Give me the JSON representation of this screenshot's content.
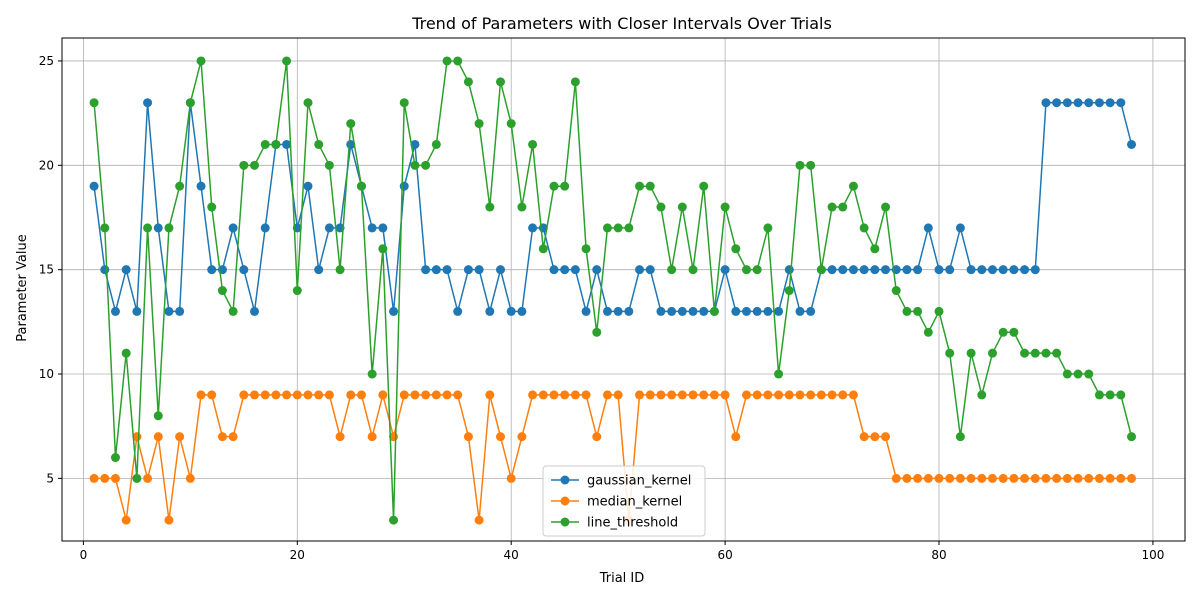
{
  "chart_data": {
    "type": "line",
    "title": "Trend of Parameters with Closer Intervals Over Trials",
    "xlabel": "Trial ID",
    "ylabel": "Parameter Value",
    "xlim": [
      -2,
      103
    ],
    "ylim": [
      2,
      26.1
    ],
    "xticks": [
      0,
      20,
      40,
      60,
      80,
      100
    ],
    "yticks": [
      5,
      10,
      15,
      20,
      25
    ],
    "grid": true,
    "legend_position": "lower-center",
    "x": [
      1,
      2,
      3,
      4,
      5,
      6,
      7,
      8,
      9,
      10,
      11,
      12,
      13,
      14,
      15,
      16,
      17,
      18,
      19,
      20,
      21,
      22,
      23,
      24,
      25,
      26,
      27,
      28,
      29,
      30,
      31,
      32,
      33,
      34,
      35,
      36,
      37,
      38,
      39,
      40,
      41,
      42,
      43,
      44,
      45,
      46,
      47,
      48,
      49,
      50,
      51,
      52,
      53,
      54,
      55,
      56,
      57,
      58,
      59,
      60,
      61,
      62,
      63,
      64,
      65,
      66,
      67,
      68,
      69,
      70,
      71,
      72,
      73,
      74,
      75,
      76,
      77,
      78,
      79,
      80,
      81,
      82,
      83,
      84,
      85,
      86,
      87,
      88,
      89,
      90,
      91,
      92,
      93,
      94,
      95,
      96,
      97,
      98
    ],
    "series": [
      {
        "name": "gaussian_kernel",
        "color": "#1f77b4",
        "values": [
          19,
          15,
          13,
          15,
          13,
          23,
          17,
          13,
          13,
          23,
          19,
          15,
          15,
          17,
          15,
          13,
          17,
          21,
          21,
          17,
          19,
          15,
          17,
          17,
          21,
          19,
          17,
          17,
          13,
          19,
          21,
          15,
          15,
          15,
          13,
          15,
          15,
          13,
          15,
          13,
          13,
          17,
          17,
          15,
          15,
          15,
          13,
          15,
          13,
          13,
          13,
          15,
          15,
          13,
          13,
          13,
          13,
          13,
          13,
          15,
          13,
          13,
          13,
          13,
          13,
          15,
          13,
          13,
          15,
          15,
          15,
          15,
          15,
          15,
          15,
          15,
          15,
          15,
          17,
          15,
          15,
          17,
          15,
          15,
          15,
          15,
          15,
          15,
          15,
          23,
          23,
          23,
          23,
          23,
          23,
          23,
          23,
          21
        ]
      },
      {
        "name": "median_kernel",
        "color": "#ff7f0e",
        "values": [
          5,
          5,
          5,
          3,
          7,
          5,
          7,
          3,
          7,
          5,
          9,
          9,
          7,
          7,
          9,
          9,
          9,
          9,
          9,
          9,
          9,
          9,
          9,
          7,
          9,
          9,
          7,
          9,
          7,
          9,
          9,
          9,
          9,
          9,
          9,
          7,
          3,
          9,
          7,
          5,
          7,
          9,
          9,
          9,
          9,
          9,
          9,
          7,
          9,
          9,
          3,
          9,
          9,
          9,
          9,
          9,
          9,
          9,
          9,
          9,
          7,
          9,
          9,
          9,
          9,
          9,
          9,
          9,
          9,
          9,
          9,
          9,
          7,
          7,
          7,
          5,
          5,
          5,
          5,
          5,
          5,
          5,
          5,
          5,
          5,
          5,
          5,
          5,
          5,
          5,
          5,
          5,
          5,
          5,
          5,
          5,
          5,
          5
        ]
      },
      {
        "name": "line_threshold",
        "color": "#2ca02c",
        "values": [
          23,
          17,
          6,
          11,
          5,
          17,
          8,
          17,
          19,
          23,
          25,
          18,
          14,
          13,
          20,
          20,
          21,
          21,
          25,
          14,
          23,
          21,
          20,
          15,
          22,
          19,
          10,
          16,
          3,
          23,
          20,
          20,
          21,
          25,
          25,
          24,
          22,
          18,
          24,
          22,
          18,
          21,
          16,
          19,
          19,
          24,
          16,
          12,
          17,
          17,
          17,
          19,
          19,
          18,
          15,
          18,
          15,
          19,
          13,
          18,
          16,
          15,
          15,
          17,
          10,
          14,
          20,
          20,
          15,
          18,
          18,
          19,
          17,
          16,
          18,
          14,
          13,
          13,
          12,
          13,
          11,
          7,
          11,
          9,
          11,
          12,
          12,
          11,
          11,
          11,
          11,
          10,
          10,
          10,
          9,
          9,
          9,
          7
        ]
      }
    ]
  }
}
